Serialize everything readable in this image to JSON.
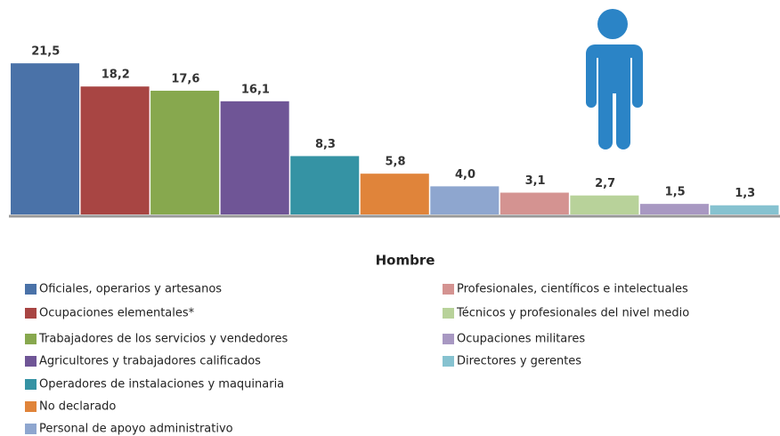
{
  "chart_data": {
    "type": "bar",
    "title": "Hombre",
    "categories": [
      "Oficiales, operarios y artesanos",
      "Ocupaciones elementales*",
      "Trabajadores de los servicios y vendedores",
      "Agricultores y trabajadores calificados",
      "Operadores de instalaciones y maquinaria",
      "No declarado",
      "Personal de apoyo administrativo",
      "Profesionales, científicos e intelectuales",
      "Técnicos y profesionales del nivel medio",
      "Ocupaciones militares",
      "Directores y gerentes"
    ],
    "values": [
      21.5,
      18.2,
      17.6,
      16.1,
      8.3,
      5.8,
      4.0,
      3.1,
      2.7,
      1.5,
      1.3
    ],
    "value_labels": [
      "21,5",
      "18,2",
      "17,6",
      "16,1",
      "8,3",
      "5,8",
      "4,0",
      "3,1",
      "2,7",
      "1,5",
      "1,3"
    ],
    "colors": [
      "#4a72a8",
      "#a84543",
      "#87a84e",
      "#6f5596",
      "#3593a4",
      "#e0843a",
      "#8ea6cf",
      "#d49391",
      "#b8d29a",
      "#a898c2",
      "#86c2d0"
    ]
  }
}
